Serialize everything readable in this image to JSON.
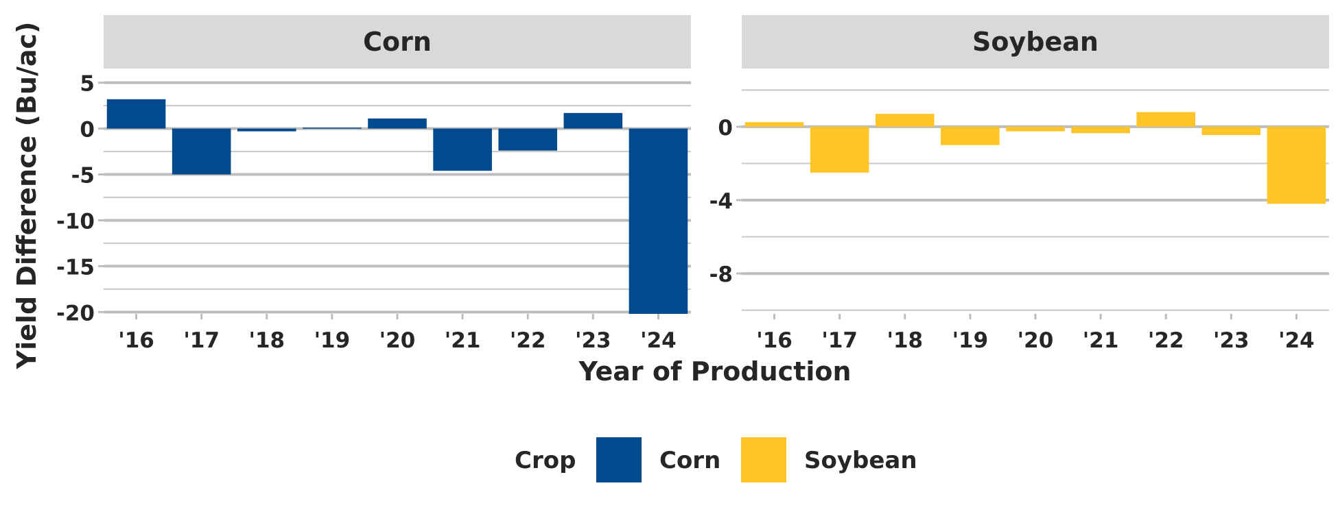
{
  "chart_data": {
    "type": "bar",
    "ylabel": "Yield Difference (Bu/ac)",
    "xlabel": "Year of Production",
    "categories": [
      "'16",
      "'17",
      "'18",
      "'19",
      "'20",
      "'21",
      "'22",
      "'23",
      "'24"
    ],
    "panels": [
      {
        "title": "Corn",
        "color": "#004A8D",
        "ylim": [
          -20.2,
          5.2
        ],
        "major_ticks": [
          5,
          0,
          -5,
          -10,
          -15,
          -20
        ],
        "minor_ticks": [
          2.5,
          -2.5,
          -7.5,
          -12.5,
          -17.5
        ],
        "values": [
          3.2,
          -5.0,
          -0.3,
          0.1,
          1.1,
          -4.6,
          -2.4,
          1.7,
          -20.2
        ]
      },
      {
        "title": "Soybean",
        "color": "#FDC527",
        "ylim": [
          -10.2,
          2.5
        ],
        "major_ticks": [
          0,
          -4,
          -8
        ],
        "minor_ticks": [
          2,
          -2,
          -6,
          -10
        ],
        "values": [
          0.25,
          -2.5,
          0.7,
          -1.0,
          -0.25,
          -0.35,
          0.8,
          -0.45,
          -4.2
        ]
      }
    ],
    "legend": {
      "title": "Crop",
      "entries": [
        {
          "label": "Corn",
          "color": "#004A8D"
        },
        {
          "label": "Soybean",
          "color": "#FDC527"
        }
      ],
      "position": "bottom"
    },
    "grid": true
  }
}
